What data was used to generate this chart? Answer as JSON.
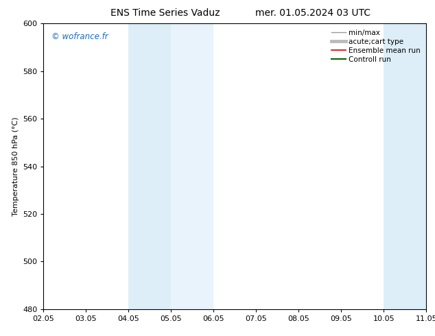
{
  "title_left": "ENS Time Series Vaduz",
  "title_right": "mer. 01.05.2024 03 UTC",
  "ylabel": "Temperature 850 hPa (°C)",
  "ylim": [
    480,
    600
  ],
  "yticks": [
    480,
    500,
    520,
    540,
    560,
    580,
    600
  ],
  "xtick_labels": [
    "02.05",
    "03.05",
    "04.05",
    "05.05",
    "06.05",
    "07.05",
    "08.05",
    "09.05",
    "10.05",
    "11.05"
  ],
  "shaded_bands": [
    {
      "xstart": 2,
      "xend": 3,
      "color": "#ddeef8"
    },
    {
      "xstart": 3,
      "xend": 4,
      "color": "#e8f3fb"
    },
    {
      "xstart": 8,
      "xend": 9,
      "color": "#ddeef8"
    }
  ],
  "watermark": "© wofrance.fr",
  "watermark_color": "#1a6abf",
  "legend_entries": [
    {
      "label": "min/max",
      "color": "#999999",
      "lw": 1.0,
      "style": "-"
    },
    {
      "label": "acute;cart type",
      "color": "#bbbbbb",
      "lw": 3.5,
      "style": "-"
    },
    {
      "label": "Ensemble mean run",
      "color": "#cc0000",
      "lw": 1.2,
      "style": "-"
    },
    {
      "label": "Controll run",
      "color": "#006600",
      "lw": 1.5,
      "style": "-"
    }
  ],
  "background_color": "#ffffff",
  "plot_bg_color": "#ffffff",
  "title_fontsize": 10,
  "axis_fontsize": 8,
  "tick_fontsize": 8,
  "legend_fontsize": 7.5
}
